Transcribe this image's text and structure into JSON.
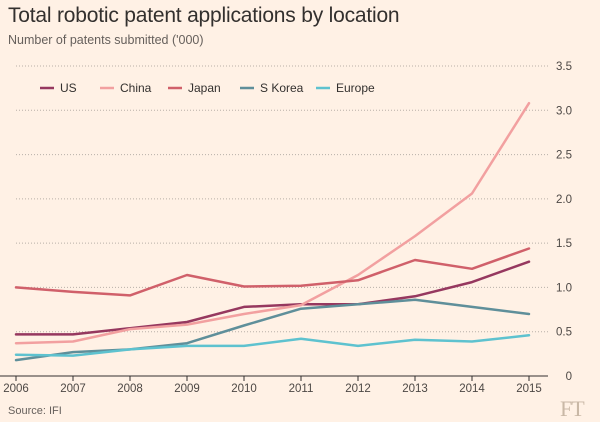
{
  "header": {
    "title": "Total robotic patent applications by location",
    "subtitle": "Number of patents submitted ('000)"
  },
  "footer": {
    "source": "Source: IFI",
    "logo_text": "FT"
  },
  "colors": {
    "background": "#fff1e5",
    "grid": "#b8b0a8",
    "axis": "#33302e",
    "US": "#96385f",
    "China": "#f2a0a0",
    "Japan": "#d0606a",
    "S Korea": "#5f8f9a",
    "Europe": "#5ec2cf"
  },
  "chart_data": {
    "type": "line",
    "title": "Total robotic patent applications by location",
    "subtitle": "Number of patents submitted ('000)",
    "xlabel": "",
    "ylabel": "",
    "x": [
      2006,
      2007,
      2008,
      2009,
      2010,
      2011,
      2012,
      2013,
      2014,
      2015
    ],
    "xticks": [
      "2006",
      "2007",
      "2008",
      "2009",
      "2010",
      "2011",
      "2012",
      "2013",
      "2014",
      "2015"
    ],
    "ylim": [
      0,
      3.5
    ],
    "yticks": [
      "0",
      "0.5",
      "1.0",
      "1.5",
      "2.0",
      "2.5",
      "3.0",
      "3.5"
    ],
    "ytick_values": [
      0,
      0.5,
      1.0,
      1.5,
      2.0,
      2.5,
      3.0,
      3.5
    ],
    "y_axis_side": "right",
    "grid": "horizontal dotted",
    "legend_position": "top-left",
    "series": [
      {
        "name": "US",
        "color": "#96385f",
        "values": [
          0.47,
          0.47,
          0.54,
          0.61,
          0.78,
          0.81,
          0.81,
          0.9,
          1.06,
          1.29
        ]
      },
      {
        "name": "China",
        "color": "#f2a0a0",
        "values": [
          0.37,
          0.39,
          0.53,
          0.58,
          0.7,
          0.8,
          1.14,
          1.58,
          2.06,
          3.08
        ]
      },
      {
        "name": "Japan",
        "color": "#d0606a",
        "values": [
          1.0,
          0.95,
          0.91,
          1.14,
          1.01,
          1.02,
          1.08,
          1.31,
          1.21,
          1.44
        ]
      },
      {
        "name": "S Korea",
        "color": "#5f8f9a",
        "values": [
          0.18,
          0.27,
          0.3,
          0.37,
          0.57,
          0.76,
          0.81,
          0.86,
          0.78,
          0.7
        ]
      },
      {
        "name": "Europe",
        "color": "#5ec2cf",
        "values": [
          0.24,
          0.23,
          0.3,
          0.34,
          0.34,
          0.42,
          0.34,
          0.41,
          0.39,
          0.46
        ]
      }
    ]
  }
}
